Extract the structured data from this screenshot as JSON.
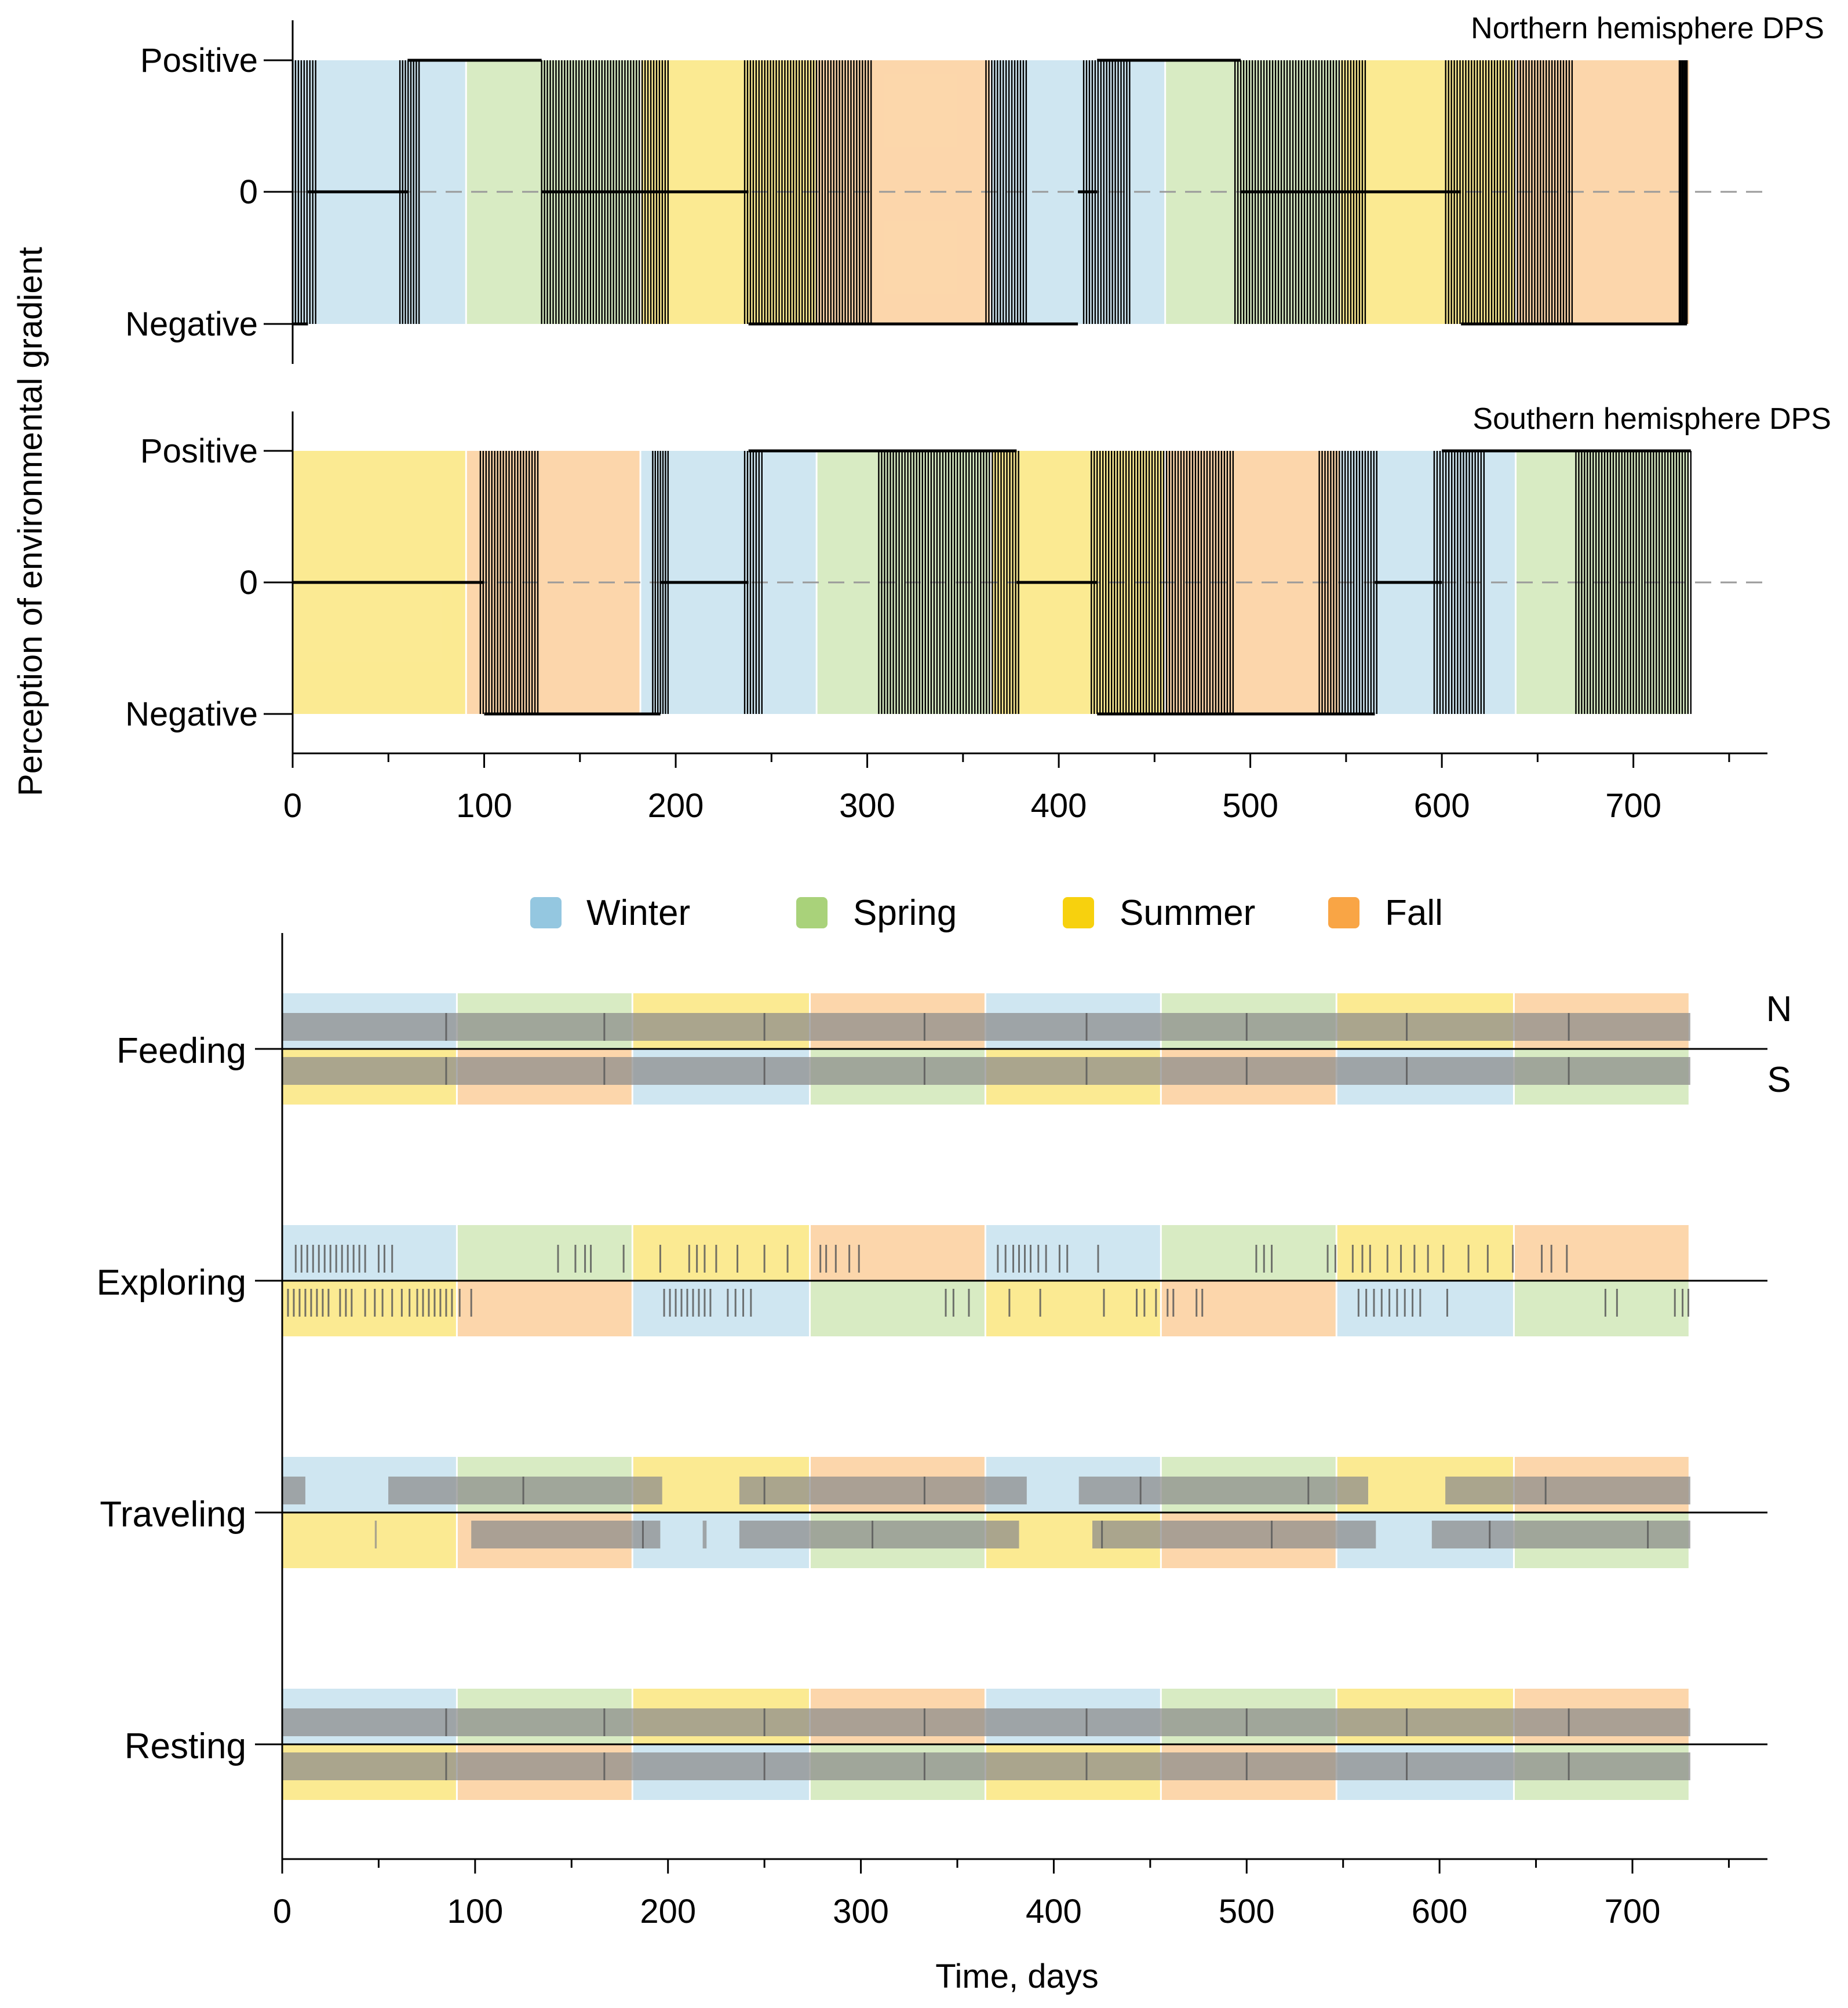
{
  "chart_data": {
    "type": "step-line + event-raster",
    "title": "",
    "y_axis_title": "Perception of environmental gradient",
    "x_axis_title": "Time, days",
    "x_range": [
      0,
      770
    ],
    "x_ticks": [
      0,
      100,
      200,
      300,
      400,
      500,
      600,
      700
    ],
    "x_ticks_labels": [
      "0",
      "100",
      "200",
      "300",
      "400",
      "500",
      "600",
      "700"
    ],
    "y_levels": [
      "Positive",
      "0",
      "Negative"
    ],
    "season_legend": [
      {
        "name": "Winter",
        "color": "#94c7e0"
      },
      {
        "name": "Spring",
        "color": "#a9d27a"
      },
      {
        "name": "Summer",
        "color": "#f7d10e"
      },
      {
        "name": "Fall",
        "color": "#f9a545"
      }
    ],
    "season_bounds_north": [
      [
        0,
        "Winter"
      ],
      [
        91,
        "Spring"
      ],
      [
        182,
        "Summer"
      ],
      [
        274,
        "Fall"
      ],
      [
        365,
        "Winter"
      ],
      [
        456,
        "Spring"
      ],
      [
        547,
        "Summer"
      ],
      [
        639,
        "Fall"
      ],
      [
        730,
        null
      ]
    ],
    "season_bounds_south": [
      [
        0,
        "Summer"
      ],
      [
        91,
        "Fall"
      ],
      [
        182,
        "Winter"
      ],
      [
        274,
        "Spring"
      ],
      [
        365,
        "Summer"
      ],
      [
        456,
        "Fall"
      ],
      [
        547,
        "Winter"
      ],
      [
        639,
        "Spring"
      ],
      [
        730,
        null
      ]
    ],
    "panels": [
      {
        "title": "Northern hemisphere DPS",
        "segments": [
          [
            0,
            8,
            "neg"
          ],
          [
            8,
            60,
            "zero"
          ],
          [
            60,
            130,
            "pos"
          ],
          [
            130,
            238,
            "zero"
          ],
          [
            238,
            410,
            "neg"
          ],
          [
            410,
            420,
            "zero"
          ],
          [
            420,
            495,
            "pos"
          ],
          [
            495,
            610,
            "zero"
          ],
          [
            610,
            728,
            "neg"
          ]
        ],
        "transitions": [
          [
            0,
            12
          ],
          [
            56,
            66
          ],
          [
            130,
            196
          ],
          [
            236,
            302
          ],
          [
            362,
            383
          ],
          [
            413,
            437
          ],
          [
            492,
            560
          ],
          [
            602,
            668
          ],
          [
            724,
            728
          ]
        ]
      },
      {
        "title": "Southern hemisphere DPS",
        "segments": [
          [
            0,
            100,
            "zero"
          ],
          [
            100,
            192,
            "neg"
          ],
          [
            192,
            238,
            "zero"
          ],
          [
            238,
            378,
            "pos"
          ],
          [
            378,
            420,
            "zero"
          ],
          [
            420,
            565,
            "neg"
          ],
          [
            565,
            600,
            "zero"
          ],
          [
            600,
            730,
            "pos"
          ]
        ],
        "transitions": [
          [
            98,
            128
          ],
          [
            188,
            196
          ],
          [
            236,
            245
          ],
          [
            306,
            379
          ],
          [
            417,
            491
          ],
          [
            536,
            566
          ],
          [
            596,
            622
          ],
          [
            670,
            730
          ]
        ]
      }
    ],
    "raster_rows": [
      {
        "label": "Feeding",
        "north": {
          "spans": [
            [
              0,
              730
            ]
          ],
          "ticks": [
            85,
            167,
            250,
            333,
            417,
            500,
            583,
            667
          ]
        },
        "south": {
          "spans": [
            [
              0,
              730
            ]
          ],
          "ticks": [
            85,
            167,
            250,
            333,
            417,
            500,
            583,
            667
          ]
        }
      },
      {
        "label": "Exploring",
        "north": {
          "spans": [],
          "ticks": [
            7,
            10,
            13,
            16,
            19,
            22,
            25,
            28,
            31,
            34,
            37,
            40,
            43,
            50,
            53,
            57,
            143,
            152,
            157,
            160,
            177,
            196,
            211,
            215,
            219,
            225,
            236,
            250,
            262,
            279,
            282,
            287,
            294,
            299,
            371,
            375,
            379,
            382,
            385,
            388,
            392,
            396,
            403,
            407,
            423,
            505,
            509,
            513,
            542,
            546,
            555,
            560,
            564,
            573,
            580,
            587,
            594,
            602,
            615,
            625,
            638,
            653,
            658,
            666
          ]
        },
        "south": {
          "spans": [],
          "ticks": [
            3,
            6,
            9,
            12,
            15,
            18,
            21,
            24,
            30,
            33,
            36,
            43,
            48,
            52,
            57,
            62,
            66,
            70,
            73,
            76,
            79,
            82,
            85,
            88,
            92,
            98,
            198,
            201,
            204,
            207,
            210,
            213,
            216,
            219,
            222,
            231,
            235,
            239,
            243,
            344,
            348,
            356,
            377,
            393,
            426,
            443,
            447,
            453,
            459,
            462,
            474,
            477,
            558,
            562,
            566,
            570,
            574,
            578,
            582,
            586,
            590,
            604,
            686,
            692,
            722,
            726,
            729
          ]
        }
      },
      {
        "label": "Traveling",
        "north": {
          "spans": [
            [
              0,
              12
            ],
            [
              55,
              197
            ],
            [
              237,
              386
            ],
            [
              413,
              563
            ],
            [
              603,
              730
            ]
          ],
          "ticks": [
            125,
            250,
            333,
            445,
            532,
            655
          ]
        },
        "south": {
          "spans": [
            [
              48,
              49
            ],
            [
              98,
              196
            ],
            [
              218,
              220
            ],
            [
              237,
              382
            ],
            [
              420,
              567
            ],
            [
              596,
              730
            ]
          ],
          "ticks": [
            187,
            306,
            425,
            513,
            626,
            708
          ]
        }
      },
      {
        "label": "Resting",
        "north": {
          "spans": [
            [
              0,
              730
            ]
          ],
          "ticks": [
            85,
            167,
            250,
            333,
            417,
            500,
            583,
            667
          ]
        },
        "south": {
          "spans": [
            [
              0,
              730
            ]
          ],
          "ticks": [
            85,
            167,
            250,
            333,
            417,
            500,
            583,
            667
          ]
        }
      }
    ],
    "raster_side_labels": {
      "north": "N",
      "south": "S"
    }
  }
}
